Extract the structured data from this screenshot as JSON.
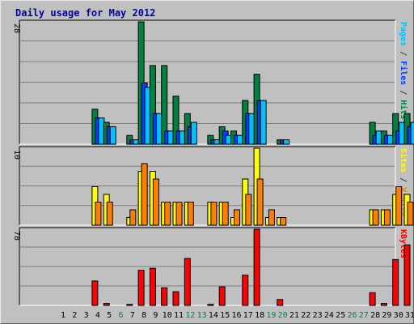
{
  "chart_data": {
    "type": "bar",
    "title": "Daily usage for May 2012",
    "categories": [
      "1",
      "2",
      "3",
      "4",
      "5",
      "6",
      "7",
      "8",
      "9",
      "10",
      "11",
      "12",
      "13",
      "14",
      "15",
      "16",
      "17",
      "18",
      "19",
      "20",
      "21",
      "22",
      "23",
      "24",
      "25",
      "26",
      "27",
      "28",
      "29",
      "30",
      "31"
    ],
    "weekend_days": [
      "6",
      "12",
      "13",
      "19",
      "20",
      "26",
      "27"
    ],
    "panels": [
      {
        "id": "traffic",
        "max_label": "28",
        "ymax": 28,
        "legend": [
          {
            "text": "Pages",
            "color": "#00c0ff"
          },
          {
            "text": " / ",
            "color": "#404040"
          },
          {
            "text": "Files",
            "color": "#0040ff"
          },
          {
            "text": " / ",
            "color": "#404040"
          },
          {
            "text": "Hits",
            "color": "#008040"
          }
        ],
        "series": [
          {
            "name": "Hits",
            "color": "#008040",
            "values": [
              0,
              0,
              0,
              8,
              5,
              0,
              2,
              28,
              18,
              18,
              11,
              7,
              0,
              2,
              4,
              3,
              10,
              16,
              0,
              1,
              0,
              0,
              0,
              0,
              0,
              0,
              0,
              5,
              3,
              7,
              7
            ]
          },
          {
            "name": "Files",
            "color": "#0040ff",
            "values": [
              0,
              0,
              0,
              6,
              4,
              0,
              1,
              14,
              7,
              3,
              3,
              4,
              0,
              1,
              3,
              2,
              7,
              10,
              0,
              1,
              0,
              0,
              0,
              0,
              0,
              0,
              0,
              2,
              2,
              3,
              4
            ]
          },
          {
            "name": "Pages",
            "color": "#00c0ff",
            "values": [
              0,
              0,
              0,
              6,
              4,
              0,
              1,
              13,
              7,
              3,
              3,
              5,
              0,
              1,
              2,
              2,
              7,
              10,
              0,
              1,
              0,
              0,
              0,
              0,
              0,
              0,
              0,
              3,
              2,
              5,
              5
            ]
          }
        ]
      },
      {
        "id": "visits",
        "max_label": "10",
        "ymax": 10,
        "legend": [
          {
            "text": "Sites",
            "color": "#ffff00"
          },
          {
            "text": " / ",
            "color": "#404040"
          },
          {
            "text": "Visits",
            "color": "#ff8000"
          }
        ],
        "series": [
          {
            "name": "Sites",
            "color": "#ffff00",
            "values": [
              0,
              0,
              0,
              5,
              4,
              0,
              1,
              7,
              7,
              3,
              3,
              3,
              0,
              3,
              3,
              1,
              6,
              10,
              1,
              1,
              0,
              0,
              0,
              0,
              0,
              0,
              0,
              2,
              2,
              4,
              4
            ]
          },
          {
            "name": "Visits",
            "color": "#ff8000",
            "values": [
              0,
              0,
              0,
              3,
              3,
              0,
              2,
              8,
              6,
              3,
              3,
              3,
              0,
              3,
              3,
              2,
              4,
              6,
              2,
              1,
              0,
              0,
              0,
              0,
              0,
              0,
              0,
              2,
              2,
              5,
              3
            ]
          }
        ]
      },
      {
        "id": "kbytes",
        "max_label": "78",
        "ymax": 78,
        "legend": [
          {
            "text": "KBytes",
            "color": "#ff0000"
          }
        ],
        "series": [
          {
            "name": "KBytes",
            "color": "#ff0000",
            "values": [
              0,
              0,
              0,
              25,
              2,
              0,
              1,
              36,
              38,
              18,
              14,
              48,
              0,
              1,
              19,
              0,
              31,
              78,
              0,
              6,
              0,
              0,
              0,
              0,
              0,
              0,
              0,
              13,
              2,
              47,
              62
            ]
          }
        ]
      }
    ]
  }
}
